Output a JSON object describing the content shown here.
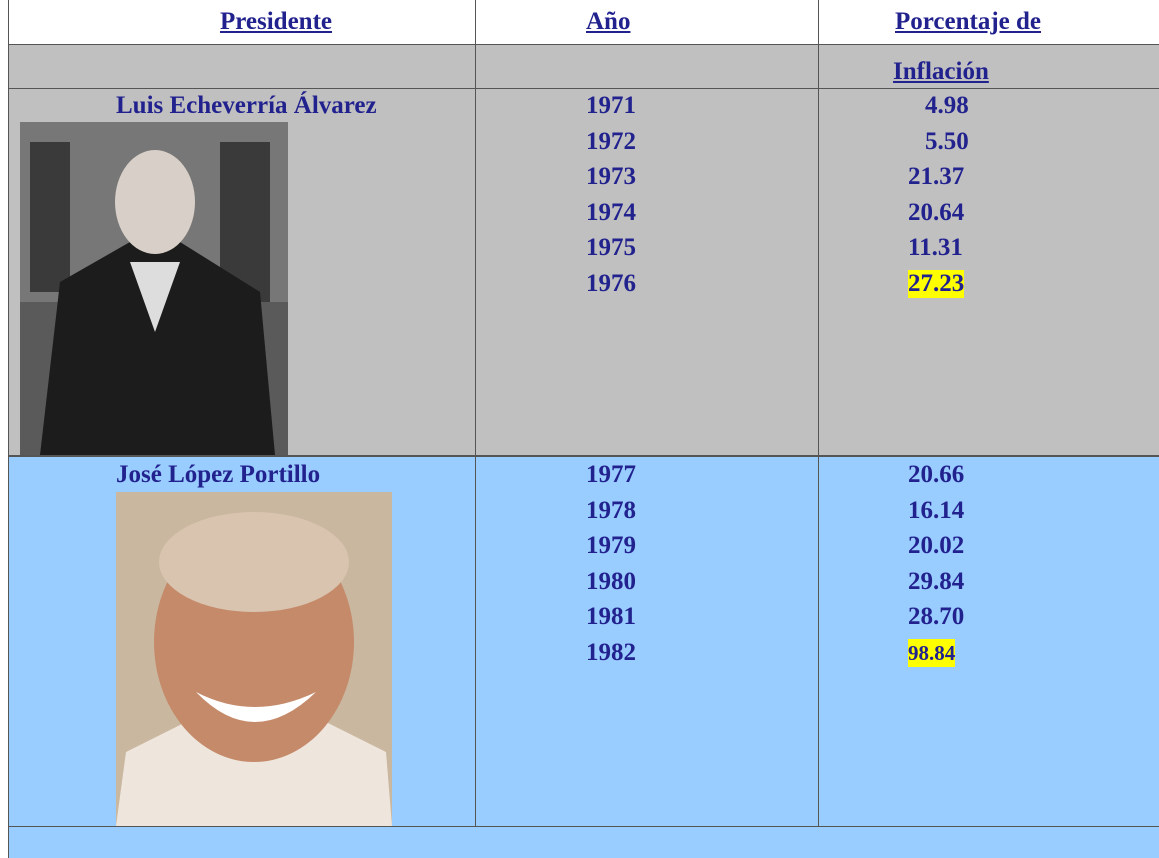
{
  "table": {
    "header": [
      "Presidente",
      "Año",
      "Porcentaje de",
      "Inflación"
    ],
    "groups": [
      {
        "president": "Luis Echeverría Álvarez",
        "rows": [
          [
            "1971",
            "4.98"
          ],
          [
            "1972",
            "5.50"
          ],
          [
            "1973",
            "21.37"
          ],
          [
            "1974",
            "20.64"
          ],
          [
            "1975",
            "11.31"
          ],
          [
            "1976",
            "27.23"
          ]
        ]
      },
      {
        "president": "José López Portillo",
        "rows": [
          [
            "1977",
            "20.66"
          ],
          [
            "1978",
            "16.14"
          ],
          [
            "1979",
            "20.02"
          ],
          [
            "1980",
            "29.84"
          ],
          [
            "1981",
            "28.70"
          ],
          [
            "1982",
            "98.84"
          ]
        ]
      }
    ]
  }
}
